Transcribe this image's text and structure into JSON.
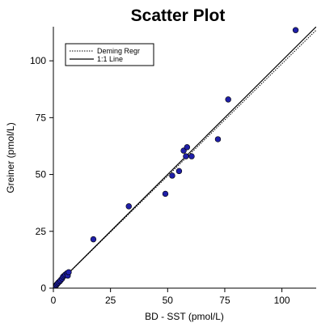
{
  "chart_data": {
    "type": "scatter",
    "title": "Scatter Plot",
    "xlabel": "BD - SST (pmol/L)",
    "ylabel": "Greiner (pmol/L)",
    "xlim": [
      0,
      115
    ],
    "ylim": [
      0,
      115
    ],
    "xticks": [
      0,
      25,
      50,
      75,
      100
    ],
    "yticks": [
      0,
      25,
      50,
      75,
      100
    ],
    "grid": false,
    "legend_position": "top-left",
    "legend": [
      {
        "label": "Deming Regr",
        "style": "dotted"
      },
      {
        "label": "1:1 Line",
        "style": "solid"
      }
    ],
    "lines": [
      {
        "name": "Deming Regr",
        "x": [
          0,
          115
        ],
        "y": [
          0,
          113.5
        ]
      },
      {
        "name": "1:1 Line",
        "x": [
          0,
          115
        ],
        "y": [
          0,
          115
        ]
      }
    ],
    "points": {
      "color": "#1f1fa8",
      "x": [
        0.5,
        1.0,
        1.4,
        1.8,
        2.2,
        2.8,
        3.2,
        3.8,
        4.2,
        4.8,
        5.3,
        5.9,
        6.3,
        6.7,
        17.5,
        33.0,
        49.0,
        52.0,
        55.0,
        57.0,
        58.0,
        58.5,
        60.5,
        72.0,
        76.5,
        106.0
      ],
      "y": [
        0.5,
        1.0,
        1.5,
        2.0,
        2.5,
        3.0,
        3.5,
        4.2,
        5.0,
        5.5,
        6.0,
        6.5,
        5.5,
        7.0,
        21.5,
        36.0,
        41.5,
        49.5,
        51.5,
        60.5,
        58.0,
        62.0,
        58.0,
        65.5,
        83.0,
        113.5
      ]
    }
  }
}
